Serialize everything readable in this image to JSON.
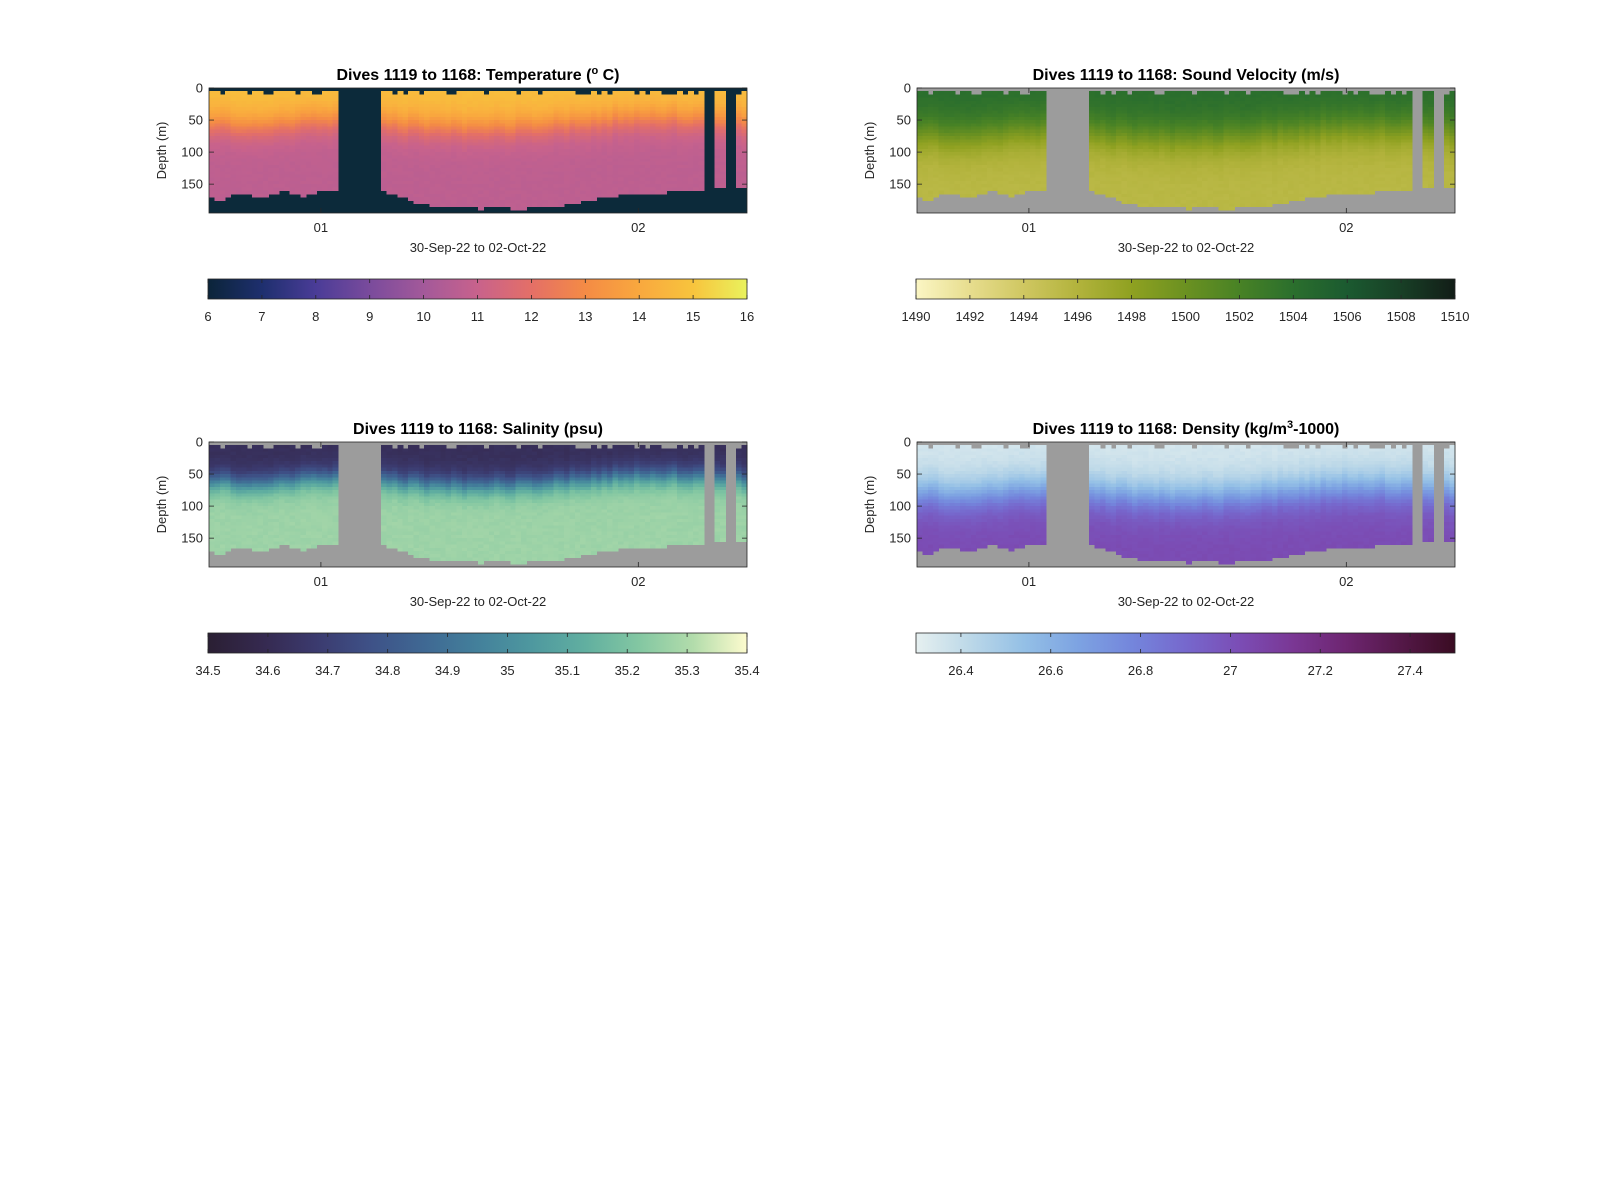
{
  "chart_data": [
    {
      "type": "heatmap",
      "title_prefix": "Dives 1119 to 1168: Temperature (",
      "title_super": "o",
      "title_suffix": " C)",
      "xlabel": "30-Sep-22 to 02-Oct-22",
      "ylabel": "Depth (m)",
      "xticks": [
        "01",
        "02"
      ],
      "yticks": [
        0,
        50,
        100,
        150
      ],
      "ylim": [
        0,
        195
      ],
      "background": "#0c2a3a",
      "colormap": [
        "#0b2439",
        "#1e2f6e",
        "#4a3c97",
        "#7a4b9c",
        "#a3599a",
        "#c8628c",
        "#e46f67",
        "#f48b45",
        "#f9a83e",
        "#f8c43d",
        "#e9f25d"
      ],
      "colorbar": {
        "min": 6,
        "max": 16,
        "ticks": [
          "6",
          "7",
          "8",
          "9",
          "10",
          "11",
          "12",
          "13",
          "14",
          "15",
          "16"
        ]
      },
      "profile": {
        "surface_value": 14.8,
        "deep_value": 10.7,
        "thermocline_depth": 55,
        "thermocline_width": 30
      }
    },
    {
      "type": "heatmap",
      "title_prefix": "Dives 1119 to 1168: Sound Velocity (m/s)",
      "title_super": "",
      "title_suffix": "",
      "xlabel": "30-Sep-22 to 02-Oct-22",
      "ylabel": "Depth (m)",
      "xticks": [
        "01",
        "02"
      ],
      "yticks": [
        0,
        50,
        100,
        150
      ],
      "ylim": [
        0,
        195
      ],
      "background": "#9c9c9c",
      "colormap": [
        "#fbf6c4",
        "#e7dd8e",
        "#cfc761",
        "#b2b33c",
        "#8fa121",
        "#6b9121",
        "#488225",
        "#2b6f2d",
        "#1b5a30",
        "#183f26",
        "#121d17"
      ],
      "colorbar": {
        "min": 1490,
        "max": 1510,
        "ticks": [
          "1490",
          "1492",
          "1494",
          "1496",
          "1498",
          "1500",
          "1502",
          "1504",
          "1506",
          "1508",
          "1510"
        ]
      },
      "profile": {
        "surface_value": 1504.2,
        "deep_value": 1495.5,
        "thermocline_depth": 70,
        "thermocline_width": 38
      }
    },
    {
      "type": "heatmap",
      "title_prefix": "Dives 1119 to 1168: Salinity (psu)",
      "title_super": "",
      "title_suffix": "",
      "xlabel": "30-Sep-22 to 02-Oct-22",
      "ylabel": "Depth (m)",
      "xticks": [
        "01",
        "02"
      ],
      "yticks": [
        0,
        50,
        100,
        150
      ],
      "ylim": [
        0,
        195
      ],
      "background": "#9c9c9c",
      "colormap": [
        "#2a1f33",
        "#35294f",
        "#3b3a6e",
        "#3e5187",
        "#3f6893",
        "#43809b",
        "#4e989f",
        "#61afa0",
        "#83c7a2",
        "#b2dcab",
        "#fdfbce"
      ],
      "colorbar": {
        "min": 34.5,
        "max": 35.4,
        "ticks": [
          "34.5",
          "34.6",
          "34.7",
          "34.8",
          "34.9",
          "35",
          "35.1",
          "35.2",
          "35.3",
          "35.4"
        ]
      },
      "profile": {
        "surface_value": 34.62,
        "deep_value": 35.27,
        "thermocline_depth": 60,
        "thermocline_width": 22
      }
    },
    {
      "type": "heatmap",
      "title_prefix": "Dives 1119 to 1168: Density (kg/m",
      "title_super": "3",
      "title_suffix": "-1000)",
      "xlabel": "30-Sep-22 to 02-Oct-22",
      "ylabel": "Depth (m)",
      "xticks": [
        "01",
        "02"
      ],
      "yticks": [
        0,
        50,
        100,
        150
      ],
      "ylim": [
        0,
        195
      ],
      "background": "#9c9c9c",
      "colormap": [
        "#e6f0f0",
        "#bcd8e8",
        "#94c0e6",
        "#7da3e2",
        "#7486dc",
        "#7668cd",
        "#7b4db5",
        "#7a3794",
        "#6d2570",
        "#541848",
        "#3a0c22"
      ],
      "colorbar": {
        "min": 26.3,
        "max": 27.5,
        "ticks": [
          "26.4",
          "26.6",
          "26.8",
          "27",
          "27.2",
          "27.4"
        ]
      },
      "profile": {
        "surface_value": 26.35,
        "deep_value": 27.03,
        "thermocline_depth": 80,
        "thermocline_width": 38
      }
    }
  ]
}
